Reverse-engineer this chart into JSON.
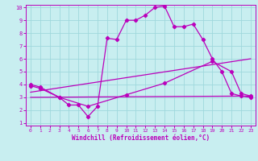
{
  "xlabel": "Windchill (Refroidissement éolien,°C)",
  "bg_color": "#c8eef0",
  "grid_color": "#9fd8dc",
  "line_color": "#bb00bb",
  "xlim": [
    -0.5,
    23.5
  ],
  "ylim": [
    0.8,
    10.2
  ],
  "xticks": [
    0,
    1,
    2,
    3,
    4,
    5,
    6,
    7,
    8,
    9,
    10,
    11,
    12,
    13,
    14,
    15,
    16,
    17,
    18,
    19,
    20,
    21,
    22,
    23
  ],
  "yticks": [
    1,
    2,
    3,
    4,
    5,
    6,
    7,
    8,
    9,
    10
  ],
  "line1_x": [
    0,
    1,
    3,
    4,
    5,
    6,
    7,
    8,
    9,
    10,
    11,
    12,
    13,
    14,
    15,
    16,
    17,
    18,
    19,
    20,
    21,
    22,
    23
  ],
  "line1_y": [
    4.0,
    3.8,
    3.0,
    2.4,
    2.4,
    1.5,
    2.3,
    7.6,
    7.5,
    9.0,
    9.0,
    9.4,
    10.0,
    10.1,
    8.5,
    8.5,
    8.7,
    7.5,
    6.0,
    5.0,
    3.3,
    3.1,
    3.0
  ],
  "line2_x": [
    0,
    1,
    3,
    6,
    10,
    14,
    19,
    21,
    22,
    23
  ],
  "line2_y": [
    3.9,
    3.7,
    3.0,
    2.3,
    3.2,
    4.1,
    5.8,
    5.0,
    3.3,
    3.1
  ],
  "line3_x": [
    0,
    23
  ],
  "line3_y": [
    3.4,
    6.0
  ],
  "line4_x": [
    0,
    23
  ],
  "line4_y": [
    3.0,
    3.1
  ]
}
